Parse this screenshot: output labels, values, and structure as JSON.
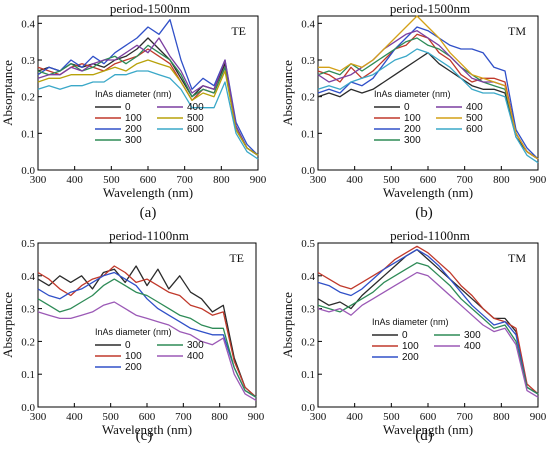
{
  "chart_data": [
    {
      "type": "line",
      "panel_label": "(a)",
      "title": "period-1500nm",
      "polarization": "TE",
      "xlabel": "Wavelength (nm)",
      "ylabel": "Absorptance",
      "xlim": [
        300,
        900
      ],
      "ylim": [
        0,
        0.42
      ],
      "xticks": [
        300,
        400,
        500,
        600,
        700,
        800,
        900
      ],
      "yticks": [
        0.0,
        0.1,
        0.2,
        0.3,
        0.4
      ],
      "legend": {
        "title": "InAs diameter (nm)",
        "placement": "center-bottom",
        "columns": 2
      },
      "x": [
        300,
        330,
        360,
        390,
        420,
        450,
        480,
        510,
        540,
        570,
        600,
        630,
        660,
        690,
        720,
        750,
        780,
        810,
        840,
        870,
        900
      ],
      "series": [
        {
          "name": "0",
          "color": "#2b2b2b",
          "values": [
            0.27,
            0.28,
            0.27,
            0.29,
            0.28,
            0.29,
            0.28,
            0.3,
            0.31,
            0.33,
            0.36,
            0.33,
            0.3,
            0.25,
            0.2,
            0.23,
            0.22,
            0.29,
            0.12,
            0.06,
            0.04
          ]
        },
        {
          "name": "100",
          "color": "#c0392b",
          "values": [
            0.28,
            0.27,
            0.26,
            0.28,
            0.29,
            0.28,
            0.27,
            0.29,
            0.3,
            0.31,
            0.33,
            0.31,
            0.29,
            0.24,
            0.19,
            0.22,
            0.21,
            0.28,
            0.11,
            0.06,
            0.04
          ]
        },
        {
          "name": "200",
          "color": "#3050c8",
          "values": [
            0.26,
            0.28,
            0.27,
            0.3,
            0.28,
            0.31,
            0.29,
            0.32,
            0.34,
            0.36,
            0.39,
            0.37,
            0.41,
            0.3,
            0.22,
            0.25,
            0.23,
            0.3,
            0.13,
            0.07,
            0.04
          ]
        },
        {
          "name": "300",
          "color": "#2e8b57",
          "values": [
            0.27,
            0.26,
            0.27,
            0.29,
            0.27,
            0.28,
            0.3,
            0.31,
            0.29,
            0.31,
            0.34,
            0.32,
            0.3,
            0.26,
            0.2,
            0.22,
            0.21,
            0.28,
            0.11,
            0.06,
            0.04
          ]
        },
        {
          "name": "400",
          "color": "#7b3fa0",
          "values": [
            0.25,
            0.26,
            0.26,
            0.28,
            0.27,
            0.29,
            0.3,
            0.3,
            0.32,
            0.34,
            0.32,
            0.36,
            0.31,
            0.27,
            0.21,
            0.23,
            0.22,
            0.3,
            0.12,
            0.06,
            0.04
          ]
        },
        {
          "name": "500",
          "color": "#b8a20a",
          "values": [
            0.24,
            0.25,
            0.25,
            0.26,
            0.26,
            0.26,
            0.27,
            0.28,
            0.27,
            0.29,
            0.3,
            0.29,
            0.28,
            0.24,
            0.19,
            0.21,
            0.2,
            0.27,
            0.11,
            0.06,
            0.04
          ]
        },
        {
          "name": "600",
          "color": "#3aa8c8",
          "values": [
            0.22,
            0.23,
            0.22,
            0.23,
            0.23,
            0.24,
            0.24,
            0.26,
            0.26,
            0.27,
            0.27,
            0.26,
            0.25,
            0.22,
            0.17,
            0.17,
            0.17,
            0.24,
            0.1,
            0.05,
            0.03
          ]
        }
      ]
    },
    {
      "type": "line",
      "panel_label": "(b)",
      "title": "period-1500nm",
      "polarization": "TM",
      "xlabel": "Wavelength (nm)",
      "ylabel": "Absorptance",
      "xlim": [
        300,
        900
      ],
      "ylim": [
        0,
        0.42
      ],
      "xticks": [
        300,
        400,
        500,
        600,
        700,
        800,
        900
      ],
      "yticks": [
        0.0,
        0.1,
        0.2,
        0.3,
        0.4
      ],
      "legend": {
        "title": "InAs diameter (nm)",
        "placement": "center-bottom",
        "columns": 2
      },
      "x": [
        300,
        330,
        360,
        390,
        420,
        450,
        480,
        510,
        540,
        570,
        600,
        630,
        660,
        690,
        720,
        750,
        780,
        810,
        840,
        870,
        900
      ],
      "series": [
        {
          "name": "0",
          "color": "#2b2b2b",
          "values": [
            0.2,
            0.21,
            0.2,
            0.22,
            0.21,
            0.22,
            0.24,
            0.26,
            0.28,
            0.3,
            0.32,
            0.29,
            0.27,
            0.25,
            0.23,
            0.22,
            0.22,
            0.21,
            0.09,
            0.05,
            0.03
          ]
        },
        {
          "name": "100",
          "color": "#c0392b",
          "values": [
            0.27,
            0.26,
            0.24,
            0.28,
            0.25,
            0.27,
            0.3,
            0.33,
            0.34,
            0.37,
            0.36,
            0.32,
            0.3,
            0.26,
            0.24,
            0.25,
            0.25,
            0.24,
            0.1,
            0.05,
            0.03
          ]
        },
        {
          "name": "200",
          "color": "#3050c8",
          "values": [
            0.21,
            0.22,
            0.21,
            0.24,
            0.23,
            0.25,
            0.29,
            0.33,
            0.36,
            0.39,
            0.38,
            0.36,
            0.34,
            0.33,
            0.33,
            0.32,
            0.28,
            0.27,
            0.11,
            0.06,
            0.03
          ]
        },
        {
          "name": "300",
          "color": "#2e8b57",
          "values": [
            0.26,
            0.27,
            0.26,
            0.29,
            0.27,
            0.29,
            0.31,
            0.33,
            0.35,
            0.36,
            0.34,
            0.33,
            0.31,
            0.28,
            0.26,
            0.24,
            0.23,
            0.22,
            0.1,
            0.05,
            0.03
          ]
        },
        {
          "name": "400",
          "color": "#7b3fa0",
          "values": [
            0.26,
            0.24,
            0.25,
            0.26,
            0.28,
            0.3,
            0.33,
            0.35,
            0.37,
            0.38,
            0.36,
            0.34,
            0.31,
            0.28,
            0.25,
            0.24,
            0.24,
            0.23,
            0.1,
            0.05,
            0.03
          ]
        },
        {
          "name": "500",
          "color": "#d4a017",
          "values": [
            0.28,
            0.28,
            0.27,
            0.29,
            0.28,
            0.3,
            0.33,
            0.36,
            0.39,
            0.42,
            0.39,
            0.36,
            0.32,
            0.29,
            0.26,
            0.25,
            0.24,
            0.23,
            0.1,
            0.05,
            0.03
          ]
        },
        {
          "name": "600",
          "color": "#3aa8c8",
          "values": [
            0.22,
            0.23,
            0.22,
            0.24,
            0.25,
            0.26,
            0.28,
            0.3,
            0.31,
            0.33,
            0.32,
            0.3,
            0.28,
            0.25,
            0.22,
            0.21,
            0.21,
            0.2,
            0.09,
            0.04,
            0.02
          ]
        }
      ]
    },
    {
      "type": "line",
      "panel_label": "(c)",
      "title": "period-1100nm",
      "polarization": "TE",
      "xlabel": "Wavelength (nm)",
      "ylabel": "Absorptance",
      "xlim": [
        300,
        900
      ],
      "ylim": [
        0,
        0.5
      ],
      "xticks": [
        300,
        400,
        500,
        600,
        700,
        800,
        900
      ],
      "yticks": [
        0.0,
        0.1,
        0.2,
        0.3,
        0.4,
        0.5
      ],
      "legend": {
        "title": "InAs diameter (nm)",
        "placement": "center-bottom",
        "columns": 2
      },
      "x": [
        300,
        330,
        360,
        390,
        420,
        450,
        480,
        510,
        540,
        570,
        600,
        630,
        660,
        690,
        720,
        750,
        780,
        810,
        840,
        870,
        900
      ],
      "series": [
        {
          "name": "0",
          "color": "#2b2b2b",
          "values": [
            0.39,
            0.37,
            0.4,
            0.38,
            0.4,
            0.36,
            0.41,
            0.42,
            0.38,
            0.43,
            0.37,
            0.42,
            0.36,
            0.4,
            0.35,
            0.33,
            0.29,
            0.31,
            0.15,
            0.06,
            0.03
          ]
        },
        {
          "name": "100",
          "color": "#c0392b",
          "values": [
            0.41,
            0.39,
            0.36,
            0.34,
            0.37,
            0.39,
            0.4,
            0.43,
            0.41,
            0.38,
            0.39,
            0.37,
            0.35,
            0.34,
            0.31,
            0.3,
            0.28,
            0.29,
            0.14,
            0.06,
            0.03
          ]
        },
        {
          "name": "200",
          "color": "#3050c8",
          "values": [
            0.36,
            0.34,
            0.33,
            0.35,
            0.36,
            0.38,
            0.4,
            0.41,
            0.39,
            0.37,
            0.33,
            0.3,
            0.28,
            0.26,
            0.24,
            0.23,
            0.22,
            0.22,
            0.12,
            0.05,
            0.03
          ]
        },
        {
          "name": "300",
          "color": "#2e8b57",
          "values": [
            0.33,
            0.31,
            0.29,
            0.3,
            0.32,
            0.34,
            0.37,
            0.39,
            0.37,
            0.35,
            0.34,
            0.32,
            0.3,
            0.28,
            0.27,
            0.25,
            0.24,
            0.24,
            0.12,
            0.05,
            0.03
          ]
        },
        {
          "name": "400",
          "color": "#9b59b6",
          "values": [
            0.29,
            0.28,
            0.27,
            0.27,
            0.28,
            0.29,
            0.31,
            0.32,
            0.3,
            0.28,
            0.27,
            0.26,
            0.25,
            0.23,
            0.22,
            0.2,
            0.19,
            0.21,
            0.1,
            0.04,
            0.02
          ]
        }
      ]
    },
    {
      "type": "line",
      "panel_label": "(d)",
      "title": "period-1100nm",
      "polarization": "TM",
      "xlabel": "Wavelength (nm)",
      "ylabel": "Absorptance",
      "xlim": [
        300,
        900
      ],
      "ylim": [
        0,
        0.5
      ],
      "xticks": [
        300,
        400,
        500,
        600,
        700,
        800,
        900
      ],
      "yticks": [
        0.0,
        0.1,
        0.2,
        0.3,
        0.4,
        0.5
      ],
      "legend": {
        "title": "InAs diameter (nm)",
        "placement": "center-bottom",
        "columns": 2
      },
      "x": [
        300,
        330,
        360,
        390,
        420,
        450,
        480,
        510,
        540,
        570,
        600,
        630,
        660,
        690,
        720,
        750,
        780,
        810,
        840,
        870,
        900
      ],
      "series": [
        {
          "name": "0",
          "color": "#2b2b2b",
          "values": [
            0.33,
            0.31,
            0.32,
            0.3,
            0.34,
            0.37,
            0.4,
            0.43,
            0.46,
            0.48,
            0.45,
            0.42,
            0.39,
            0.36,
            0.33,
            0.3,
            0.27,
            0.27,
            0.23,
            0.06,
            0.04
          ]
        },
        {
          "name": "100",
          "color": "#c0392b",
          "values": [
            0.41,
            0.39,
            0.37,
            0.36,
            0.38,
            0.4,
            0.42,
            0.45,
            0.47,
            0.49,
            0.47,
            0.44,
            0.41,
            0.37,
            0.34,
            0.3,
            0.27,
            0.26,
            0.24,
            0.07,
            0.04
          ]
        },
        {
          "name": "200",
          "color": "#3050c8",
          "values": [
            0.38,
            0.37,
            0.35,
            0.34,
            0.36,
            0.39,
            0.42,
            0.44,
            0.46,
            0.48,
            0.46,
            0.43,
            0.39,
            0.35,
            0.31,
            0.28,
            0.25,
            0.26,
            0.22,
            0.06,
            0.04
          ]
        },
        {
          "name": "300",
          "color": "#2e8b57",
          "values": [
            0.31,
            0.3,
            0.29,
            0.31,
            0.33,
            0.35,
            0.38,
            0.4,
            0.42,
            0.44,
            0.43,
            0.4,
            0.37,
            0.33,
            0.3,
            0.27,
            0.24,
            0.25,
            0.2,
            0.06,
            0.04
          ]
        },
        {
          "name": "400",
          "color": "#9b59b6",
          "values": [
            0.3,
            0.29,
            0.3,
            0.28,
            0.31,
            0.33,
            0.35,
            0.37,
            0.39,
            0.41,
            0.4,
            0.37,
            0.34,
            0.31,
            0.28,
            0.25,
            0.23,
            0.24,
            0.19,
            0.05,
            0.03
          ]
        }
      ]
    }
  ]
}
